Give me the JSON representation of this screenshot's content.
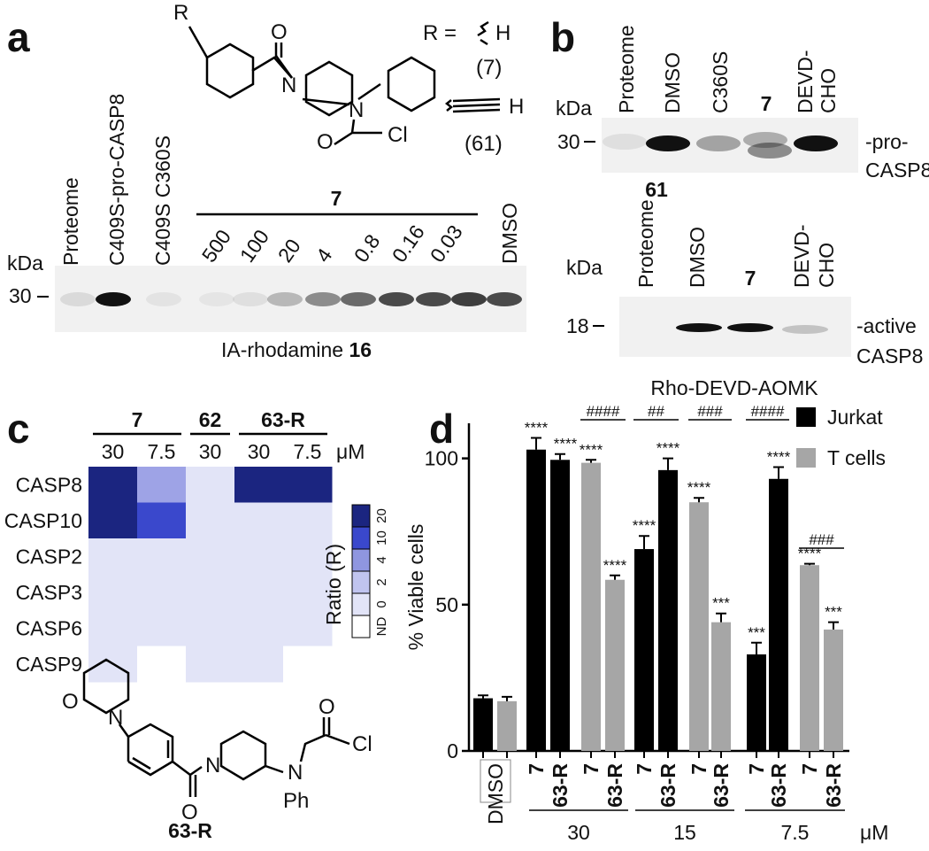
{
  "panel_a": {
    "label": "a",
    "structure": {
      "r_label": "R",
      "atoms": [
        "O",
        "N",
        "N",
        "O",
        "Cl"
      ],
      "r_def": "R =",
      "h1": "H",
      "cmpd1": "(7)",
      "h2": "H",
      "cmpd2": "(61)"
    },
    "lanes": [
      "Proteome",
      "C409S-pro-CASP8",
      "C409S C360S"
    ],
    "compound": "7",
    "concentrations": [
      500,
      100,
      20,
      4,
      0.8,
      0.16,
      0.03
    ],
    "dmso": "DMSO",
    "kda": "kDa",
    "marker": 30,
    "probe": "IA-rhodamine ",
    "probe_number": "16"
  },
  "panel_b": {
    "label": "b",
    "top": {
      "lanes": [
        "Proteome",
        "DMSO",
        "C360S",
        "7",
        "DEVD-",
        "CHO"
      ],
      "kda": "kDa",
      "marker": 30,
      "band": [
        "-pro-",
        "CASP8"
      ],
      "compound": "61"
    },
    "bottom": {
      "lanes": [
        "Proteome",
        "DMSO",
        "7",
        "DEVD-",
        "CHO"
      ],
      "kda": "kDa",
      "marker": 18,
      "band": [
        "-active",
        "CASP8"
      ],
      "probe": "Rho-DEVD-AOMK"
    }
  },
  "panel_c": {
    "label": "c",
    "groups": [
      "7",
      "62",
      "63-R"
    ],
    "columns": [
      30,
      7.5,
      30,
      30,
      7.5
    ],
    "unit": "μM",
    "rows": [
      "CASP8",
      "CASP10",
      "CASP2",
      "CASP3",
      "CASP6",
      "CASP9"
    ],
    "cells": [
      [
        "#1b2580",
        "#9ea3e6",
        "#e2e4f7",
        "#1b2580",
        "#1b2580"
      ],
      [
        "#1b2580",
        "#3a48cc",
        "#e2e4f7",
        "#e2e4f7",
        "#e2e4f7"
      ],
      [
        "#e2e4f7",
        "#e2e4f7",
        "#e2e4f7",
        "#e2e4f7",
        "#e2e4f7"
      ],
      [
        "#e2e4f7",
        "#e2e4f7",
        "#e2e4f7",
        "#e2e4f7",
        "#e2e4f7"
      ],
      [
        "#e2e4f7",
        "#e2e4f7",
        "#e2e4f7",
        "#e2e4f7",
        "#e2e4f7"
      ],
      [
        "#e2e4f7",
        "#ffffff",
        "#e2e4f7",
        "#e2e4f7",
        "#ffffff"
      ]
    ],
    "colorbar_title": "Ratio (R)",
    "colorbar": [
      {
        "label": "ND",
        "color": "#ffffff"
      },
      {
        "label": "0",
        "color": "#e2e4f7"
      },
      {
        "label": "2",
        "color": "#c0c4ef"
      },
      {
        "label": "4",
        "color": "#8f96e0"
      },
      {
        "label": "10",
        "color": "#3a48cc"
      },
      {
        "label": "20",
        "color": "#1b2580"
      }
    ],
    "structure": {
      "name": "63-R",
      "atoms": [
        "O",
        "N",
        "N",
        "O",
        "N",
        "Ph",
        "O",
        "Cl"
      ]
    }
  },
  "panel_d": {
    "label": "d",
    "y_label": "% Viable cells",
    "ylim": [
      0,
      112
    ],
    "yticks": [
      0,
      50,
      100
    ],
    "legend": [
      {
        "name": "Jurkat",
        "color": "#000000"
      },
      {
        "name": "T cells",
        "color": "#a6a6a6"
      }
    ],
    "dmso": "DMSO",
    "bars": [
      {
        "value": 18,
        "error": 1,
        "color": "#000000"
      },
      {
        "value": 17,
        "error": 1.5,
        "color": "#a6a6a6"
      },
      {
        "value": 103,
        "error": 4,
        "color": "#000000",
        "compound": "7",
        "stars": "****"
      },
      {
        "value": 99.5,
        "error": 2,
        "color": "#000000",
        "compound": "63-R",
        "stars": "****"
      },
      {
        "value": 98.5,
        "error": 1,
        "color": "#a6a6a6",
        "compound": "7",
        "stars": "****"
      },
      {
        "value": 58.5,
        "error": 1.5,
        "color": "#a6a6a6",
        "compound": "63-R",
        "stars": "****"
      },
      {
        "value": 69,
        "error": 4.5,
        "color": "#000000",
        "compound": "7",
        "stars": "****"
      },
      {
        "value": 96,
        "error": 4,
        "color": "#000000",
        "compound": "63-R",
        "stars": "****"
      },
      {
        "value": 85,
        "error": 1.5,
        "color": "#a6a6a6",
        "compound": "7",
        "stars": "****"
      },
      {
        "value": 44,
        "error": 3,
        "color": "#a6a6a6",
        "compound": "63-R",
        "stars": "***"
      },
      {
        "value": 33,
        "error": 4,
        "color": "#000000",
        "compound": "7",
        "stars": "***"
      },
      {
        "value": 93,
        "error": 4,
        "color": "#000000",
        "compound": "63-R",
        "stars": "****"
      },
      {
        "value": 63.5,
        "error": 0.5,
        "color": "#a6a6a6",
        "compound": "7",
        "stars": "****"
      },
      {
        "value": 41.5,
        "error": 2.5,
        "color": "#a6a6a6",
        "compound": "63-R",
        "stars": "***"
      }
    ],
    "hashes": [
      "####",
      "##",
      "###",
      "####",
      "###"
    ],
    "groups": [
      30,
      15,
      7.5
    ],
    "unit": "μM"
  }
}
